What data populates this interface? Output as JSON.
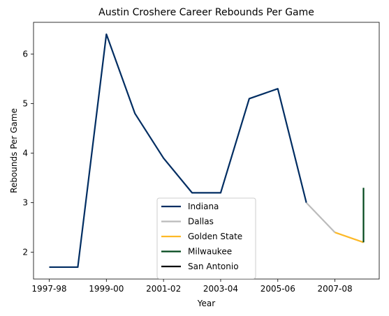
{
  "chart_data": {
    "type": "line",
    "title": "Austin Croshere Career Rebounds Per Game",
    "xlabel": "Year",
    "ylabel": "Rebounds Per Game",
    "x_categories": [
      "1997-98",
      "1998-99",
      "1999-00",
      "2000-01",
      "2001-02",
      "2002-03",
      "2003-04",
      "2004-05",
      "2005-06",
      "2006-07",
      "2007-08",
      "2008-09"
    ],
    "x_tick_labels": [
      "1997-98",
      "1999-00",
      "2001-02",
      "2003-04",
      "2005-06",
      "2007-08"
    ],
    "y_ticks": [
      2,
      3,
      4,
      5,
      6
    ],
    "ylim": [
      1.46,
      6.64
    ],
    "grid": false,
    "legend_position": "lower center",
    "series": [
      {
        "name": "Indiana",
        "color": "#002D62",
        "x": [
          "1997-98",
          "1998-99",
          "1999-00",
          "2000-01",
          "2001-02",
          "2002-03",
          "2003-04",
          "2004-05",
          "2005-06",
          "2006-07"
        ],
        "values": [
          1.7,
          1.7,
          6.4,
          4.8,
          3.9,
          3.2,
          3.2,
          5.1,
          5.3,
          3.0
        ]
      },
      {
        "name": "Dallas",
        "color": "#BBBBBB",
        "x": [
          "2006-07",
          "2007-08"
        ],
        "values": [
          3.0,
          2.4
        ]
      },
      {
        "name": "Golden State",
        "color": "#FDB927",
        "x": [
          "2007-08",
          "2008-09"
        ],
        "values": [
          2.4,
          2.2
        ]
      },
      {
        "name": "Milwaukee",
        "color": "#00471B",
        "x": [
          "2008-09",
          "2008-09"
        ],
        "values": [
          2.2,
          3.3
        ]
      },
      {
        "name": "San Antonio",
        "color": "#000000",
        "x": [],
        "values": []
      }
    ]
  }
}
